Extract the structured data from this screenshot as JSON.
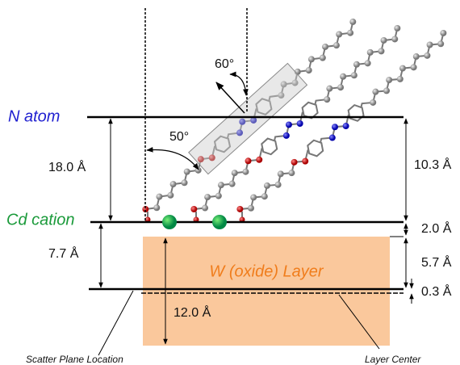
{
  "angles": [
    "60°",
    "50°"
  ],
  "levels": {
    "n_atom": "N atom",
    "cd_cation": "Cd cation"
  },
  "layer": "W (oxide) Layer",
  "distances": [
    "18.0 Å",
    "10.3 Å",
    "2.0 Å",
    "7.7 Å",
    "5.7 Å",
    "0.3 Å",
    "12.0 Å"
  ],
  "annotations": [
    "Scatter Plane Location",
    "Layer Center"
  ]
}
